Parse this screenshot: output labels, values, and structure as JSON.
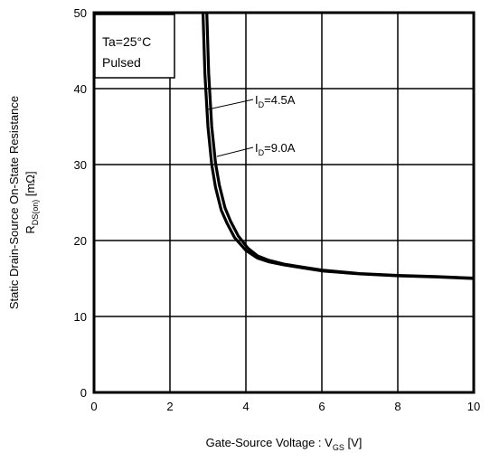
{
  "chart_data": {
    "type": "line",
    "title": "",
    "xlabel": {
      "main": "Gate-Source Voltage : V",
      "sub": "GS",
      "unit": " [V]"
    },
    "ylabel": {
      "line1": "Static Drain-Source On-State Resistance",
      "line2_main": "R",
      "line2_sub": "DS(on)",
      "line2_unit": " [mΩ]"
    },
    "xlim": [
      0,
      10
    ],
    "ylim": [
      0,
      50
    ],
    "xticks": [
      0,
      2,
      4,
      6,
      8,
      10
    ],
    "yticks": [
      0,
      10,
      20,
      30,
      40,
      50
    ],
    "grid": true,
    "conditions": [
      "Ta=25°C",
      "Pulsed"
    ],
    "series": [
      {
        "name": "ID=4.5A",
        "label_main": "I",
        "label_sub": "D",
        "label_value": "=4.5A",
        "x": [
          2.87,
          2.92,
          3.0,
          3.1,
          3.2,
          3.35,
          3.5,
          3.7,
          4.0,
          4.3,
          4.6,
          5.0,
          5.5,
          6.0,
          7.0,
          8.0,
          9.0,
          10.0
        ],
        "y": [
          50,
          42,
          35,
          30,
          27,
          24,
          22.3,
          20.4,
          18.7,
          17.7,
          17.2,
          16.8,
          16.4,
          16.0,
          15.6,
          15.35,
          15.2,
          15.0
        ]
      },
      {
        "name": "ID=9.0A",
        "label_main": "I",
        "label_sub": "D",
        "label_value": "=9.0A",
        "x": [
          2.97,
          3.02,
          3.1,
          3.2,
          3.3,
          3.45,
          3.6,
          3.8,
          4.05,
          4.3,
          4.6,
          5.0,
          5.5,
          6.0,
          7.0,
          8.0,
          9.0,
          10.0
        ],
        "y": [
          50,
          42,
          35,
          30.2,
          27.3,
          24.3,
          22.5,
          20.6,
          19.0,
          18.0,
          17.4,
          16.9,
          16.5,
          16.1,
          15.65,
          15.4,
          15.25,
          15.05
        ]
      }
    ]
  }
}
